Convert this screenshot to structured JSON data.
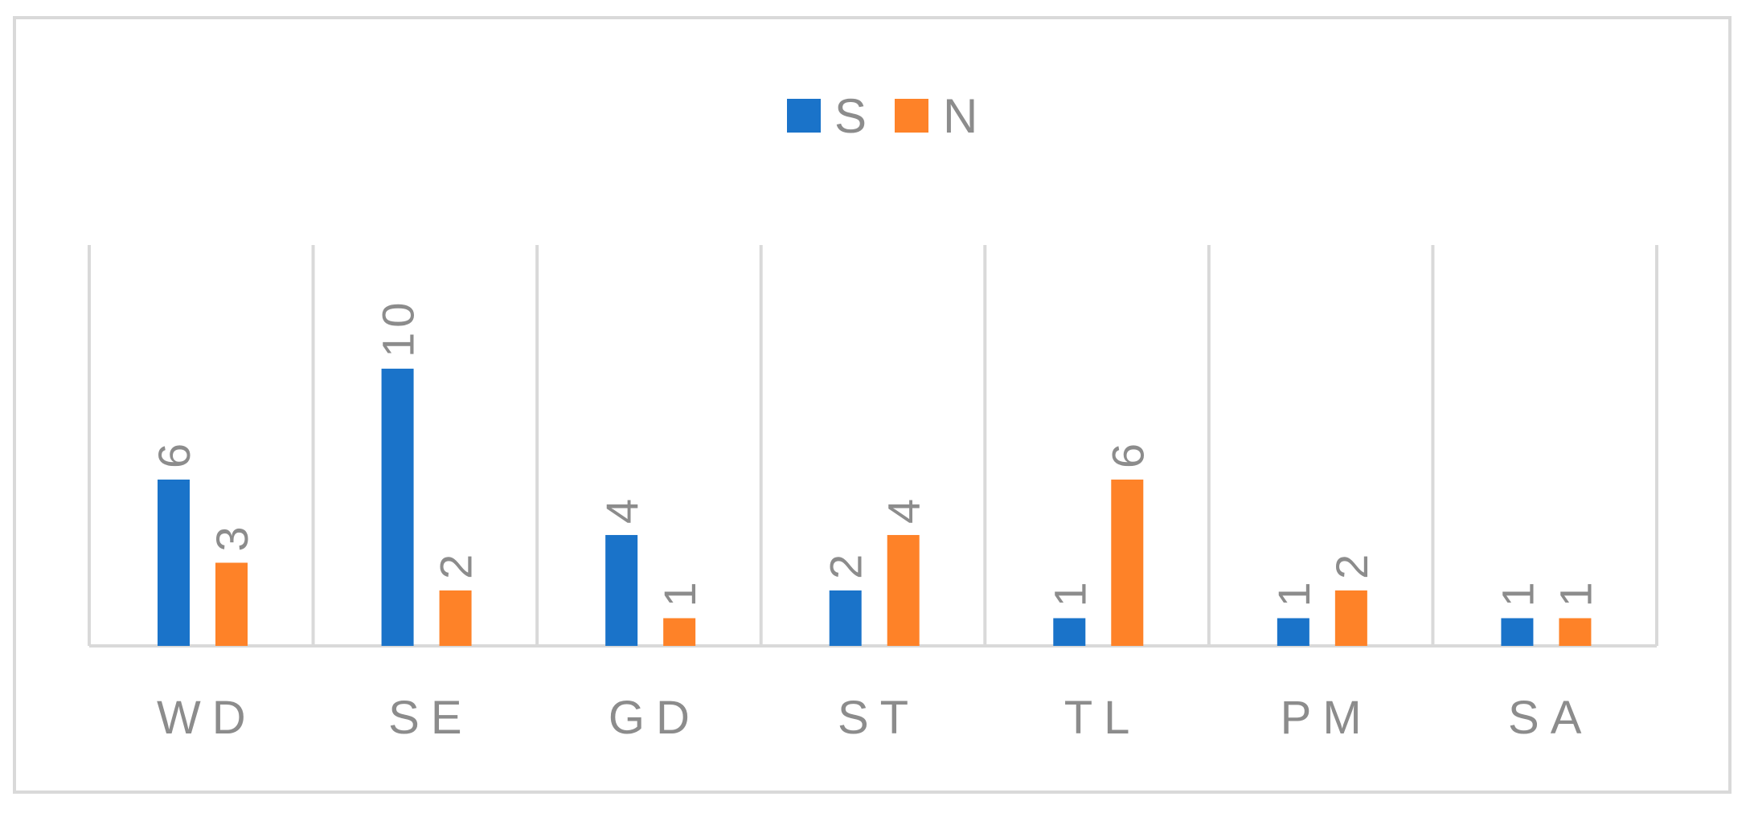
{
  "chart_data": {
    "type": "bar",
    "categories": [
      "WD",
      "SE",
      "GD",
      "ST",
      "TL",
      "PM",
      "SA"
    ],
    "series": [
      {
        "name": "S",
        "values": [
          6,
          10,
          4,
          2,
          1,
          1,
          1
        ],
        "color": "#1a73c9"
      },
      {
        "name": "N",
        "values": [
          3,
          2,
          1,
          4,
          6,
          2,
          1
        ],
        "color": "#fe8228"
      }
    ],
    "title": "",
    "xlabel": "",
    "ylabel": "",
    "ylim": [
      0,
      15
    ],
    "grid": "vertical category separators",
    "legend": "top-center",
    "data_labels": "rotated, above bars"
  },
  "colors": {
    "text": "#8c8c8c",
    "grid": "#d9d9d9",
    "border": "#d9d9d9",
    "background": "#ffffff"
  }
}
